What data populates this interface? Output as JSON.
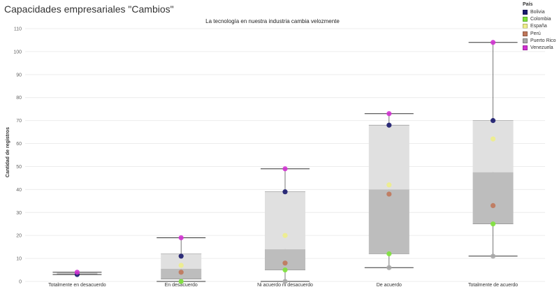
{
  "page": {
    "title": "Capacidades empresariales \"Cambios\""
  },
  "chart_data": {
    "type": "boxplot",
    "title": "La tecnología en nuestra industria cambia velozmente",
    "xlabel": "",
    "ylabel": "Cantidad de registros",
    "ylim": [
      0,
      110
    ],
    "yticks": [
      0,
      10,
      20,
      30,
      40,
      50,
      60,
      70,
      80,
      90,
      100,
      110
    ],
    "grid": true,
    "legend_position": "top-right",
    "legend_title": "País",
    "categories": [
      "Totalmente en desacuerdo",
      "En desacuerdo",
      "Ni acuerdo ni desacuerdo",
      "De acuerdo",
      "Totalmente de acuerdo"
    ],
    "series": [
      {
        "name": "Bolivia",
        "color": "#1a1a6e",
        "values": [
          3,
          11,
          39,
          68,
          70
        ]
      },
      {
        "name": "Colombia",
        "color": "#7ee33b",
        "values": [
          null,
          0,
          5,
          12,
          25
        ]
      },
      {
        "name": "España",
        "color": "#eeee8a",
        "values": [
          null,
          7,
          20,
          42,
          62
        ]
      },
      {
        "name": "Perú",
        "color": "#c0775a",
        "values": [
          null,
          4,
          8,
          38,
          33
        ]
      },
      {
        "name": "Puerto Rico",
        "color": "#a9a9a9",
        "values": [
          null,
          0,
          0,
          6,
          11
        ]
      },
      {
        "name": "Venezuela",
        "color": "#d232d2",
        "values": [
          4,
          19,
          49,
          73,
          104
        ]
      }
    ],
    "boxes": [
      {
        "min": 3,
        "q1": 3,
        "median": 3.5,
        "q3": 4,
        "max": 4
      },
      {
        "min": 0,
        "q1": 1,
        "median": 5.5,
        "q3": 12,
        "max": 19
      },
      {
        "min": 0,
        "q1": 5,
        "median": 14,
        "q3": 39,
        "max": 49
      },
      {
        "min": 6,
        "q1": 12,
        "median": 40,
        "q3": 68,
        "max": 73
      },
      {
        "min": 11,
        "q1": 25,
        "median": 47.5,
        "q3": 70,
        "max": 104
      }
    ]
  }
}
